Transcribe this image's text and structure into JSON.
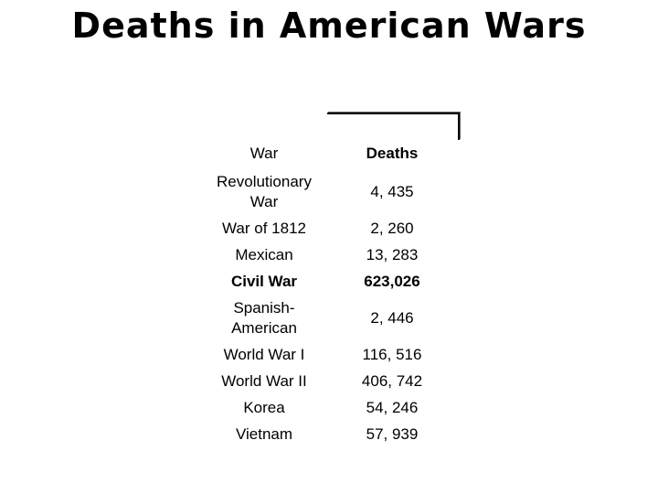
{
  "title": "Deaths in American Wars",
  "table": {
    "headers": {
      "war": "War",
      "deaths": "Deaths"
    },
    "rows": [
      {
        "war": "Revolutionary War",
        "deaths": "4, 435"
      },
      {
        "war": "War of 1812",
        "deaths": "2, 260"
      },
      {
        "war": "Mexican",
        "deaths": "13, 283"
      },
      {
        "war": "Civil War",
        "deaths": "623,026"
      },
      {
        "war": "Spanish-American",
        "deaths": "2, 446"
      },
      {
        "war": "World War I",
        "deaths": "116, 516"
      },
      {
        "war": "World War II",
        "deaths": "406, 742"
      },
      {
        "war": "Korea",
        "deaths": "54, 246"
      },
      {
        "war": "Vietnam",
        "deaths": "57, 939"
      }
    ]
  }
}
